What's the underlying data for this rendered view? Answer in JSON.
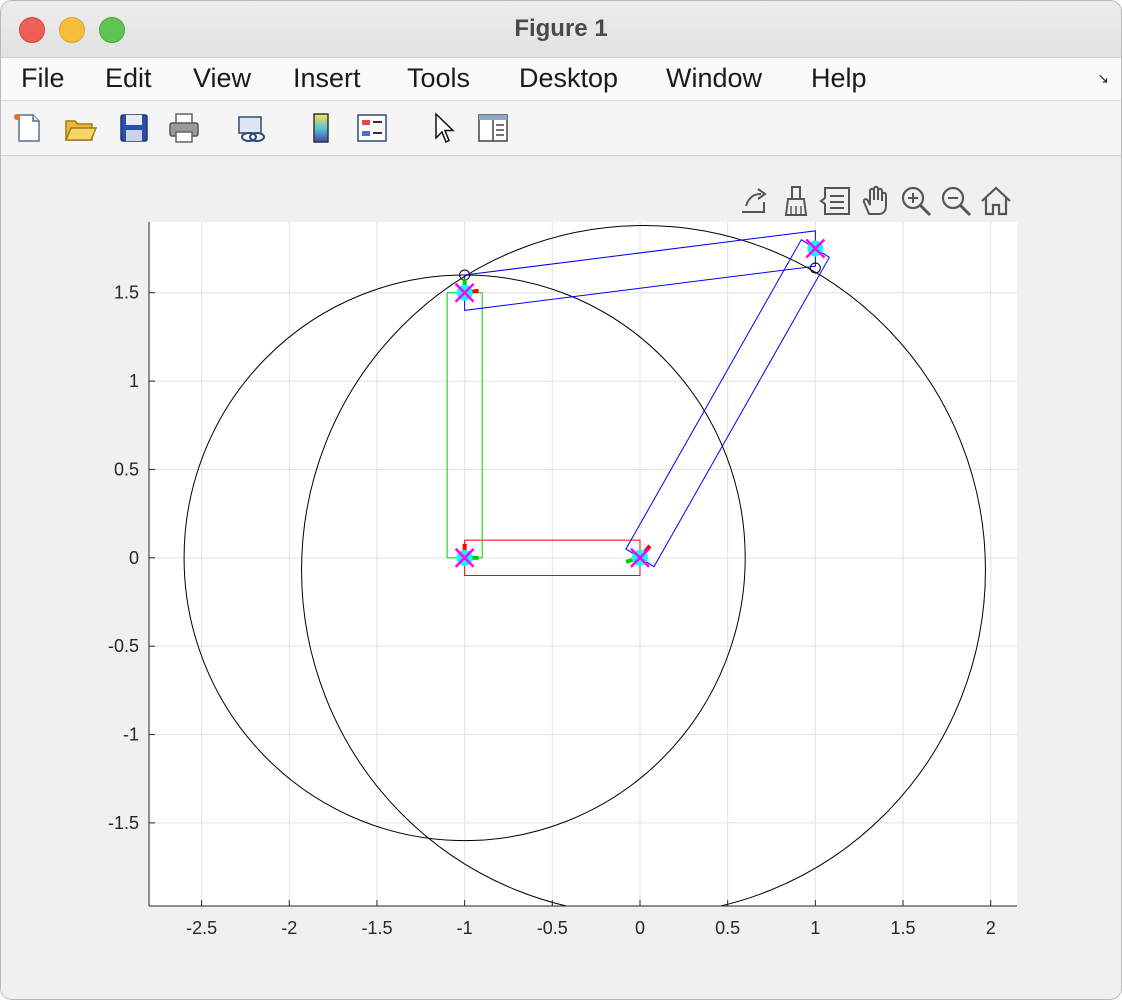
{
  "window": {
    "title": "Figure 1"
  },
  "menu": {
    "items": [
      "File",
      "Edit",
      "View",
      "Insert",
      "Tools",
      "Desktop",
      "Window",
      "Help"
    ]
  },
  "toolbar": {
    "icons": [
      "new-figure-icon",
      "open-file-icon",
      "save-icon",
      "print-icon",
      "link-plot-icon",
      "insert-colorbar-icon",
      "insert-legend-icon",
      "edit-plot-pointer-icon",
      "property-inspector-icon"
    ]
  },
  "axes_toolbar": {
    "icons": [
      "export-icon",
      "data-brush-icon",
      "data-tips-icon",
      "pan-icon",
      "zoom-in-icon",
      "zoom-out-icon",
      "restore-view-home-icon"
    ]
  },
  "chart_data": {
    "type": "line",
    "xlim": [
      -2.8,
      2.15
    ],
    "ylim": [
      -1.97,
      1.9
    ],
    "x_ticks": [
      -2.5,
      -2,
      -1.5,
      -1,
      -0.5,
      0,
      0.5,
      1,
      1.5,
      2
    ],
    "x_tick_labels": [
      "-2.5",
      "-2",
      "-1.5",
      "-1",
      "-0.5",
      "0",
      "0.5",
      "1",
      "1.5",
      "2"
    ],
    "y_ticks": [
      -1.5,
      -1,
      -0.5,
      0,
      0.5,
      1,
      1.5
    ],
    "y_tick_labels": [
      "-1.5",
      "-1",
      "-0.5",
      "0",
      "0.5",
      "1",
      "1.5"
    ],
    "grid": true,
    "circles": [
      {
        "center": [
          -1.0,
          0.0
        ],
        "radius": 1.6,
        "color": "#000000"
      },
      {
        "center": [
          0.02,
          -0.07
        ],
        "radius": 1.95,
        "color": "#000000"
      }
    ],
    "links": [
      {
        "name": "red",
        "color": "#ff0000",
        "corners": [
          [
            -1.0,
            0.1
          ],
          [
            0.0,
            0.1
          ],
          [
            0.0,
            -0.1
          ],
          [
            -1.0,
            -0.1
          ]
        ]
      },
      {
        "name": "green",
        "color": "#00cc00",
        "corners": [
          [
            -1.1,
            0.0
          ],
          [
            -0.9,
            0.0
          ],
          [
            -0.9,
            1.5
          ],
          [
            -1.1,
            1.5
          ]
        ]
      },
      {
        "name": "blue-1",
        "color": "#0000ff",
        "corners": [
          [
            -0.08,
            0.05
          ],
          [
            0.08,
            -0.05
          ],
          [
            1.08,
            1.7
          ],
          [
            0.92,
            1.8
          ]
        ]
      },
      {
        "name": "blue-2",
        "color": "#0000ff",
        "corners": [
          [
            -1.0,
            1.6
          ],
          [
            1.0,
            1.85
          ],
          [
            1.0,
            1.65
          ],
          [
            -1.0,
            1.4
          ]
        ]
      }
    ],
    "joint_markers": [
      [
        -1.0,
        0.0
      ],
      [
        0.0,
        0.0
      ],
      [
        -1.0,
        1.5
      ],
      [
        1.0,
        1.75
      ]
    ],
    "marker_colors": {
      "fill": "#00ffff",
      "cross": "#ff00ff"
    },
    "small_circles": [
      [
        -1.0,
        1.6
      ],
      [
        1.0,
        1.64
      ]
    ]
  }
}
